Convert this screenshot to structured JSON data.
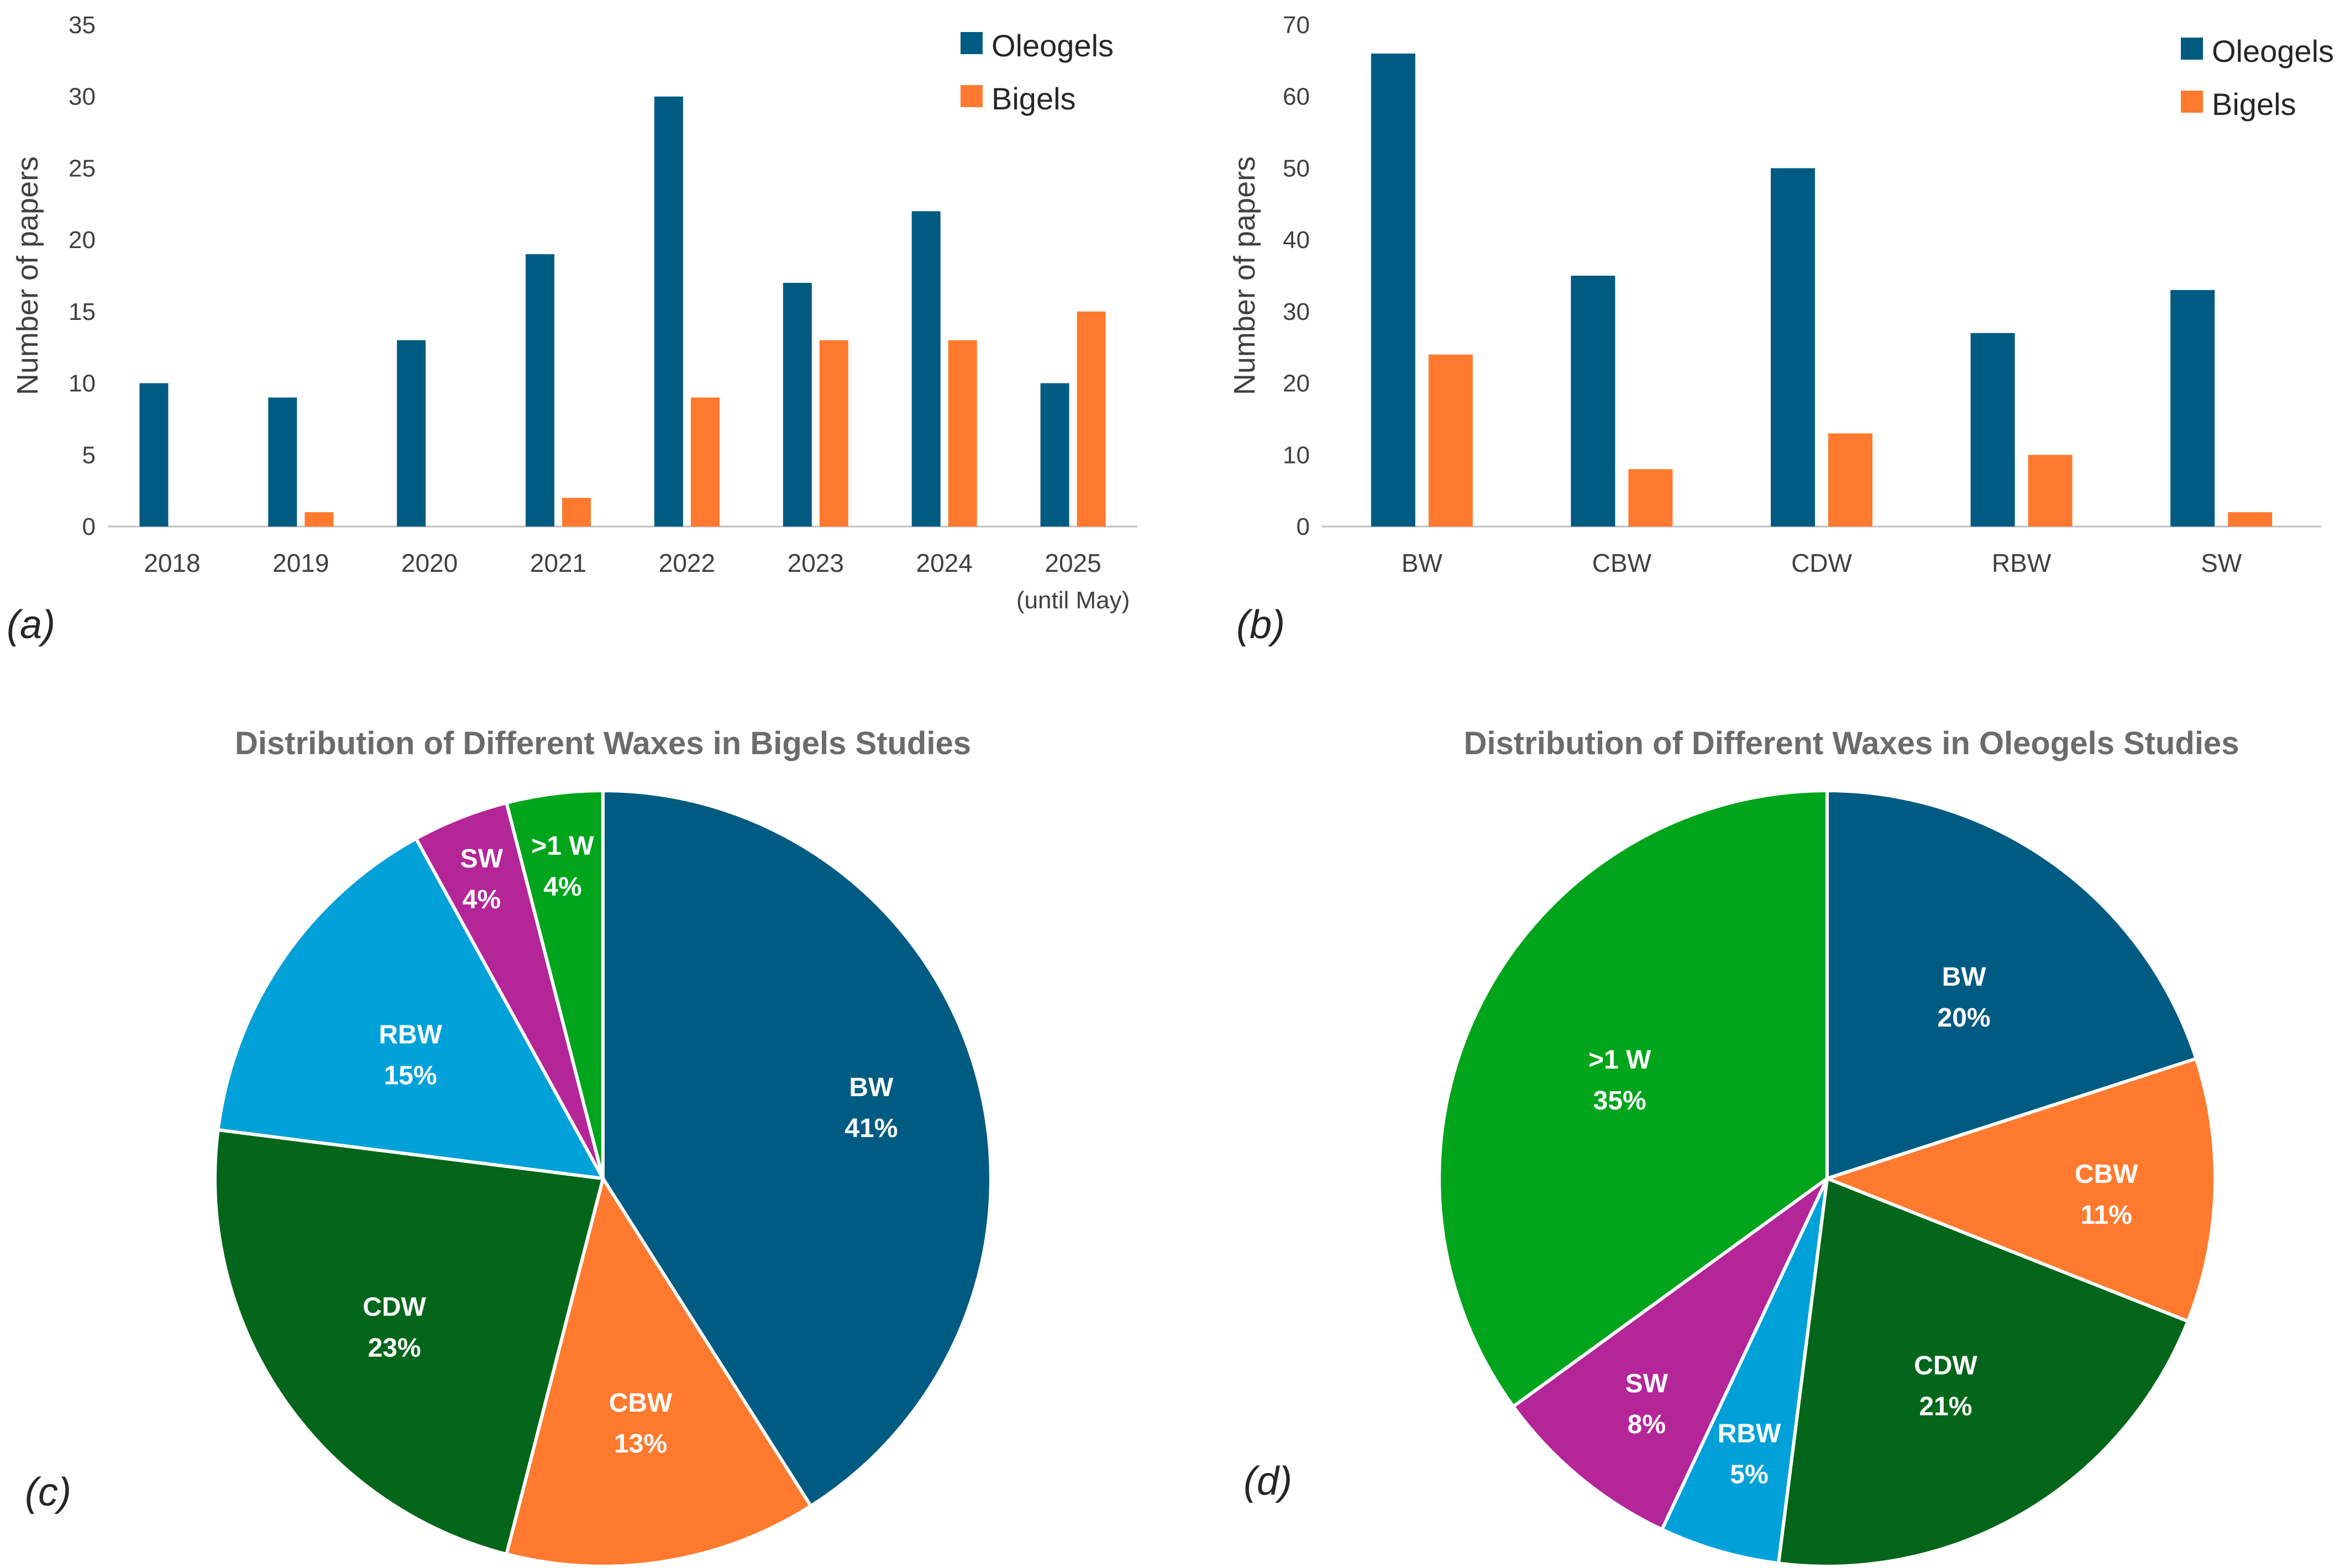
{
  "colors": {
    "oleogels": "#005b82",
    "bigels": "#ff7a2e",
    "BW": "#005b82",
    "CBW": "#ff7a2e",
    "CDW": "#03661a",
    "RBW": "#00a1d9",
    "SW": "#b42598",
    ">1 W": "#00a51c"
  },
  "panels": {
    "a": "(a)",
    "b": "(b)",
    "c": "(c)",
    "d": "(d)"
  },
  "chart_data": [
    {
      "type": "bar",
      "panel": "(a)",
      "categories": [
        "2018",
        "2019",
        "2020",
        "2021",
        "2022",
        "2023",
        "2024",
        "2025"
      ],
      "category_notes": [
        "",
        "",
        "",
        "",
        "",
        "",
        "",
        "(until May)"
      ],
      "series": [
        {
          "name": "Oleogels",
          "values": [
            10,
            9,
            13,
            19,
            30,
            17,
            22,
            10
          ]
        },
        {
          "name": "Bigels",
          "values": [
            0,
            1,
            0,
            2,
            9,
            13,
            13,
            15
          ]
        }
      ],
      "ylabel": "Number of papers",
      "ylim": [
        0,
        35
      ],
      "yticks": [
        0,
        5,
        10,
        15,
        20,
        25,
        30,
        35
      ],
      "grid": false,
      "legend": "top-right"
    },
    {
      "type": "bar",
      "panel": "(b)",
      "categories": [
        "BW",
        "CBW",
        "CDW",
        "RBW",
        "SW"
      ],
      "series": [
        {
          "name": "Oleogels",
          "values": [
            66,
            35,
            50,
            27,
            33
          ]
        },
        {
          "name": "Bigels",
          "values": [
            24,
            8,
            13,
            10,
            2
          ]
        }
      ],
      "ylabel": "Number of papers",
      "ylim": [
        0,
        70
      ],
      "yticks": [
        0,
        10,
        20,
        30,
        40,
        50,
        60,
        70
      ],
      "grid": false,
      "legend": "top-right"
    },
    {
      "type": "pie",
      "panel": "(c)",
      "title": "Distribution of Different Waxes in Bigels Studies",
      "slices": [
        {
          "label": "BW",
          "value": 41,
          "text": "41%"
        },
        {
          "label": "CBW",
          "value": 13,
          "text": "13%"
        },
        {
          "label": "CDW",
          "value": 23,
          "text": "23%"
        },
        {
          "label": "RBW",
          "value": 15,
          "text": "15%"
        },
        {
          "label": "SW",
          "value": 4,
          "text": "4%"
        },
        {
          "label": ">1 W",
          "value": 4,
          "text": "4%"
        }
      ]
    },
    {
      "type": "pie",
      "panel": "(d)",
      "title": "Distribution of Different Waxes in Oleogels Studies",
      "slices": [
        {
          "label": "BW",
          "value": 20,
          "text": "20%"
        },
        {
          "label": "CBW",
          "value": 11,
          "text": "11%"
        },
        {
          "label": "CDW",
          "value": 21,
          "text": "21%"
        },
        {
          "label": "RBW",
          "value": 5,
          "text": "5%"
        },
        {
          "label": "SW",
          "value": 8,
          "text": "8%"
        },
        {
          "label": ">1 W",
          "value": 35,
          "text": "35%"
        }
      ]
    }
  ]
}
